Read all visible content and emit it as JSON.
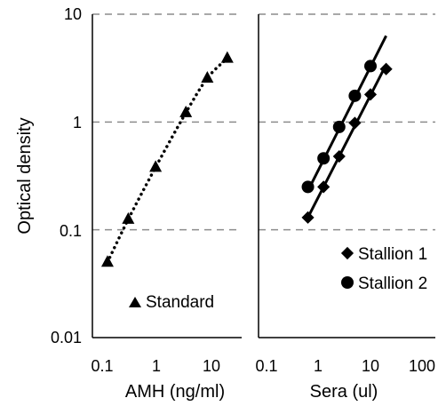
{
  "chart_data": [
    {
      "type": "scatter",
      "x_scale": "log",
      "y_scale": "log",
      "xlim": [
        0.1,
        30
      ],
      "ylim": [
        0.01,
        10
      ],
      "xlabel": "AMH (ng/ml)",
      "ylabel": "Optical density",
      "x_ticks": [
        "0.1",
        "1",
        "10"
      ],
      "y_ticks": [
        "10",
        "1",
        "0.1",
        "0.01"
      ],
      "gridlines": "horizontal-dashed",
      "legend_position": "bottom-left",
      "series": [
        {
          "name": "Standard",
          "marker": "triangle",
          "trendline": "dotted-curve",
          "x": [
            0.125,
            0.3,
            0.95,
            3.4,
            8.4,
            19.5
          ],
          "y": [
            0.05,
            0.125,
            0.38,
            1.22,
            2.55,
            3.9
          ]
        }
      ]
    },
    {
      "type": "scatter",
      "x_scale": "log",
      "y_scale": "log",
      "xlim": [
        0.1,
        100
      ],
      "ylim": [
        0.01,
        10
      ],
      "xlabel": "Sera (ul)",
      "x_ticks": [
        "0.1",
        "1",
        "10",
        "100"
      ],
      "gridlines": "horizontal-dashed",
      "legend_position": "bottom-right",
      "series": [
        {
          "name": "Stallion 1",
          "marker": "diamond",
          "trendline": "linear",
          "x": [
            0.625,
            1.25,
            2.5,
            5,
            10,
            20
          ],
          "y": [
            0.13,
            0.25,
            0.48,
            0.98,
            1.8,
            3.1
          ],
          "fit": {
            "x": [
              0.625,
              20
            ],
            "y": [
              0.13,
              3.4
            ]
          }
        },
        {
          "name": "Stallion 2",
          "marker": "circle",
          "trendline": "linear",
          "x": [
            0.625,
            1.25,
            2.5,
            5,
            10
          ],
          "y": [
            0.25,
            0.46,
            0.9,
            1.75,
            3.3
          ],
          "fit": {
            "x": [
              0.625,
              20
            ],
            "y": [
              0.23,
              6.3
            ]
          }
        }
      ]
    }
  ]
}
